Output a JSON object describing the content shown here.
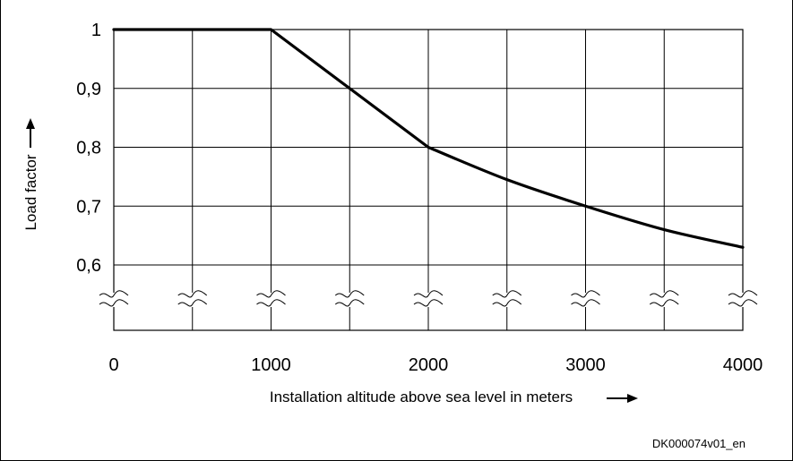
{
  "chart_data": {
    "type": "line",
    "xlabel": "Installation altitude above sea level in meters",
    "ylabel": "Load factor",
    "x_ticks": [
      "0",
      "1000",
      "2000",
      "3000",
      "4000"
    ],
    "y_ticks": [
      "1",
      "0,9",
      "0,8",
      "0,7",
      "0,6"
    ],
    "xlim": [
      0,
      4000
    ],
    "ylim": [
      0.6,
      1.0
    ],
    "grid": true,
    "axis_break": true,
    "series": [
      {
        "x": [
          0,
          1000,
          1500,
          2000,
          2500,
          3000,
          3500,
          4000
        ],
        "y": [
          1.0,
          1.0,
          0.9,
          0.8,
          0.745,
          0.7,
          0.66,
          0.63
        ]
      }
    ]
  },
  "footer_code": "DK000074v01_en",
  "colors": {
    "line": "#000000",
    "grid": "#000000",
    "background": "#ffffff"
  }
}
